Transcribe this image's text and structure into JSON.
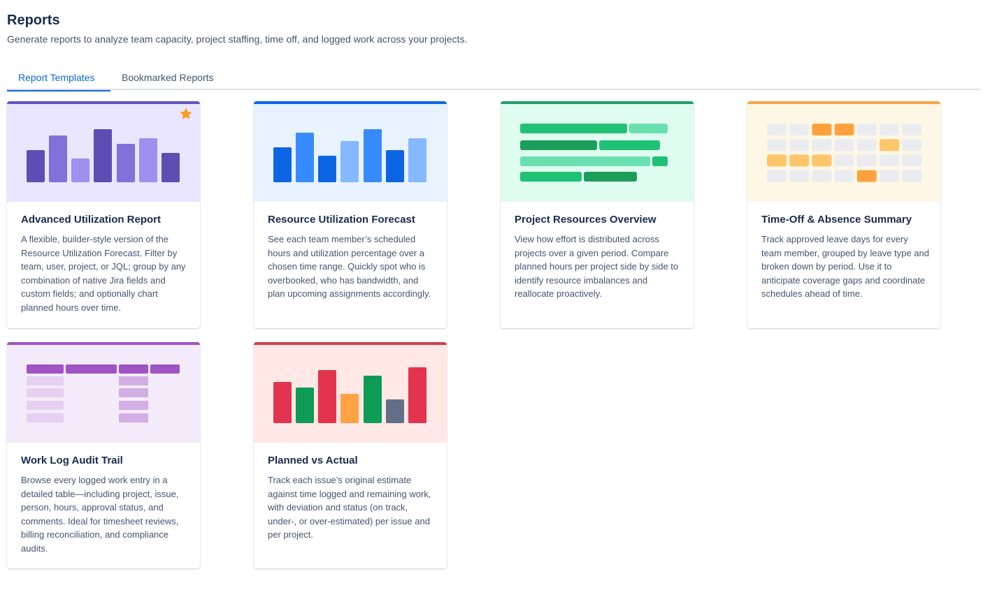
{
  "header": {
    "title": "Reports",
    "subtitle": "Generate reports to analyze team capacity, project staffing, time off, and logged work across your projects."
  },
  "tabs": [
    {
      "label": "Report Templates",
      "active": true
    },
    {
      "label": "Bookmarked Reports",
      "active": false
    }
  ],
  "cards": [
    {
      "title": "Advanced Utilization Report",
      "description": "A flexible, builder-style version of the Resource Utilization Forecast. Filter by team, user, project, or JQL; group by any combination of native Jira fields and custom fields; and optionally chart planned hours over time.",
      "accent": "#6554c0",
      "background": "#eae6ff",
      "bookmarked": true,
      "star_color": "#ff991f"
    },
    {
      "title": "Resource Utilization Forecast",
      "description": "See each team member’s scheduled hours and utilization percentage over a chosen time range. Quickly spot who is overbooked, who has bandwidth, and plan upcoming assignments accordingly.",
      "accent": "#0c66e4",
      "background": "#e9f2ff",
      "bookmarked": false
    },
    {
      "title": "Project Resources Overview",
      "description": "View how effort is distributed across projects over a given period. Compare planned hours per project side by side to identify resource imbalances and reallocate proactively.",
      "accent": "#22a06b",
      "background": "#dffcf0",
      "bookmarked": false
    },
    {
      "title": "Time-Off & Absence Summary",
      "description": "Track approved leave days for every team member, grouped by leave type and broken down by period. Use it to anticipate coverage gaps and coordinate schedules ahead of time.",
      "accent": "#f5a742",
      "background": "#fff7e6",
      "bookmarked": false
    },
    {
      "title": "Work Log Audit Trail",
      "description": "Browse every logged work entry in a detailed table—including project, issue, person, hours, approval status, and comments. Ideal for timesheet reviews, billing reconciliation, and compliance audits.",
      "accent": "#9f53c4",
      "background": "#f3ebf9",
      "bookmarked": false
    },
    {
      "title": "Planned vs Actual",
      "description": "Track each issue’s original estimate against time logged and remaining work, with deviation and status (on track, under-, or over-estimated) per issue and per project.",
      "accent": "#d13e4d",
      "background": "#ffe8e6",
      "bookmarked": false
    }
  ],
  "icons": {
    "star": "star-icon"
  }
}
